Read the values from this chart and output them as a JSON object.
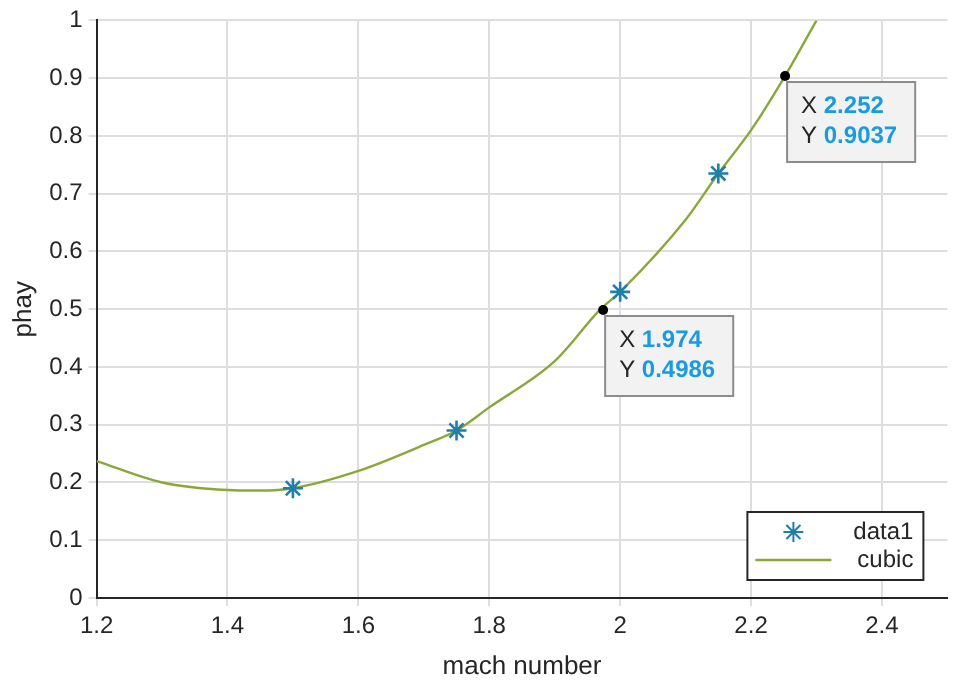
{
  "chart_data": {
    "type": "scatter",
    "xlabel": "mach number",
    "ylabel": "phay",
    "series": [
      {
        "name": "data1",
        "type": "scatter",
        "marker": "cross",
        "color": "#1f7fa8",
        "x": [
          1.5,
          1.75,
          2.0,
          2.15
        ],
        "values": [
          0.19,
          0.29,
          0.53,
          0.735
        ]
      },
      {
        "name": "cubic",
        "type": "line",
        "marker": "none",
        "color": "#8aa83a",
        "x": [
          1.2,
          1.3,
          1.4,
          1.45,
          1.5,
          1.6,
          1.7,
          1.75,
          1.8,
          1.9,
          1.97,
          2.0,
          2.1,
          2.15,
          2.2,
          2.25,
          2.3
        ],
        "values": [
          0.237,
          0.2,
          0.187,
          0.186,
          0.19,
          0.22,
          0.265,
          0.29,
          0.33,
          0.41,
          0.5,
          0.53,
          0.655,
          0.735,
          0.81,
          0.9,
          1.0
        ]
      }
    ],
    "annotations": [
      {
        "text": "X 1.974\nY 0.4986",
        "x": 1.974,
        "y": 0.4986
      },
      {
        "text": "X 2.252\nY 0.9037",
        "x": 2.252,
        "y": 0.9037
      }
    ],
    "xlim": [
      1.2,
      2.5
    ],
    "xticks": [
      1.2,
      1.4,
      1.6,
      1.8,
      2,
      2.2,
      2.4
    ],
    "ylim": [
      0,
      1
    ],
    "yticks": [
      0,
      0.1,
      0.2,
      0.3,
      0.4,
      0.5,
      0.6,
      0.7,
      0.8,
      0.9,
      1
    ],
    "grid": true,
    "legend": "bottom right"
  }
}
